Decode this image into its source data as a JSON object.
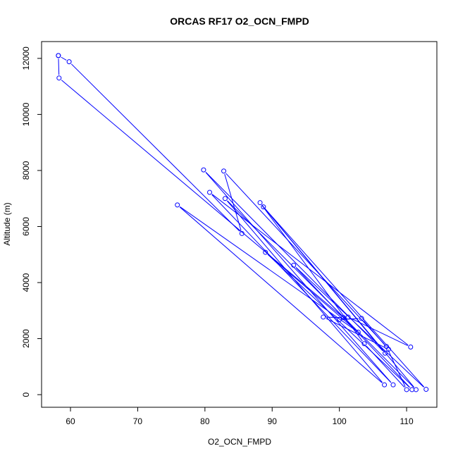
{
  "chart_data": {
    "type": "line",
    "title": "ORCAS RF17 O2_OCN_FMPD",
    "xlabel": "O2_OCN_FMPD",
    "ylabel": "Altitude (m)",
    "xlim": [
      55.7,
      114.5
    ],
    "ylim": [
      -450,
      12600
    ],
    "xticks": [
      60,
      70,
      80,
      90,
      100,
      110
    ],
    "yticks": [
      0,
      2000,
      4000,
      6000,
      8000,
      10000,
      12000
    ],
    "series_color": "#0000ff",
    "markers": "open-circle",
    "points": [
      {
        "x": 58.2,
        "y": 12100
      },
      {
        "x": 59.8,
        "y": 11880
      },
      {
        "x": 85.5,
        "y": 5750
      },
      {
        "x": 82.8,
        "y": 7980
      },
      {
        "x": 107.0,
        "y": 1720
      },
      {
        "x": 110.0,
        "y": 180
      },
      {
        "x": 103.7,
        "y": 1820
      },
      {
        "x": 88.2,
        "y": 6850
      },
      {
        "x": 111.4,
        "y": 180
      },
      {
        "x": 83.0,
        "y": 7000
      },
      {
        "x": 106.7,
        "y": 350
      },
      {
        "x": 75.9,
        "y": 6770
      },
      {
        "x": 102.8,
        "y": 2230
      },
      {
        "x": 89.0,
        "y": 5080
      },
      {
        "x": 110.8,
        "y": 180
      },
      {
        "x": 93.2,
        "y": 4620
      },
      {
        "x": 112.9,
        "y": 190
      },
      {
        "x": 88.7,
        "y": 6700
      },
      {
        "x": 106.8,
        "y": 1480
      },
      {
        "x": 79.8,
        "y": 8020
      },
      {
        "x": 108.0,
        "y": 350
      },
      {
        "x": 80.7,
        "y": 7220
      },
      {
        "x": 110.6,
        "y": 1700
      },
      {
        "x": 101.3,
        "y": 2770
      },
      {
        "x": 100.0,
        "y": 2680
      },
      {
        "x": 103.3,
        "y": 2720
      },
      {
        "x": 107.3,
        "y": 1620
      },
      {
        "x": 97.6,
        "y": 2770
      },
      {
        "x": 100.6,
        "y": 2750
      },
      {
        "x": 58.3,
        "y": 11300
      },
      {
        "x": 58.2,
        "y": 12100
      }
    ]
  }
}
